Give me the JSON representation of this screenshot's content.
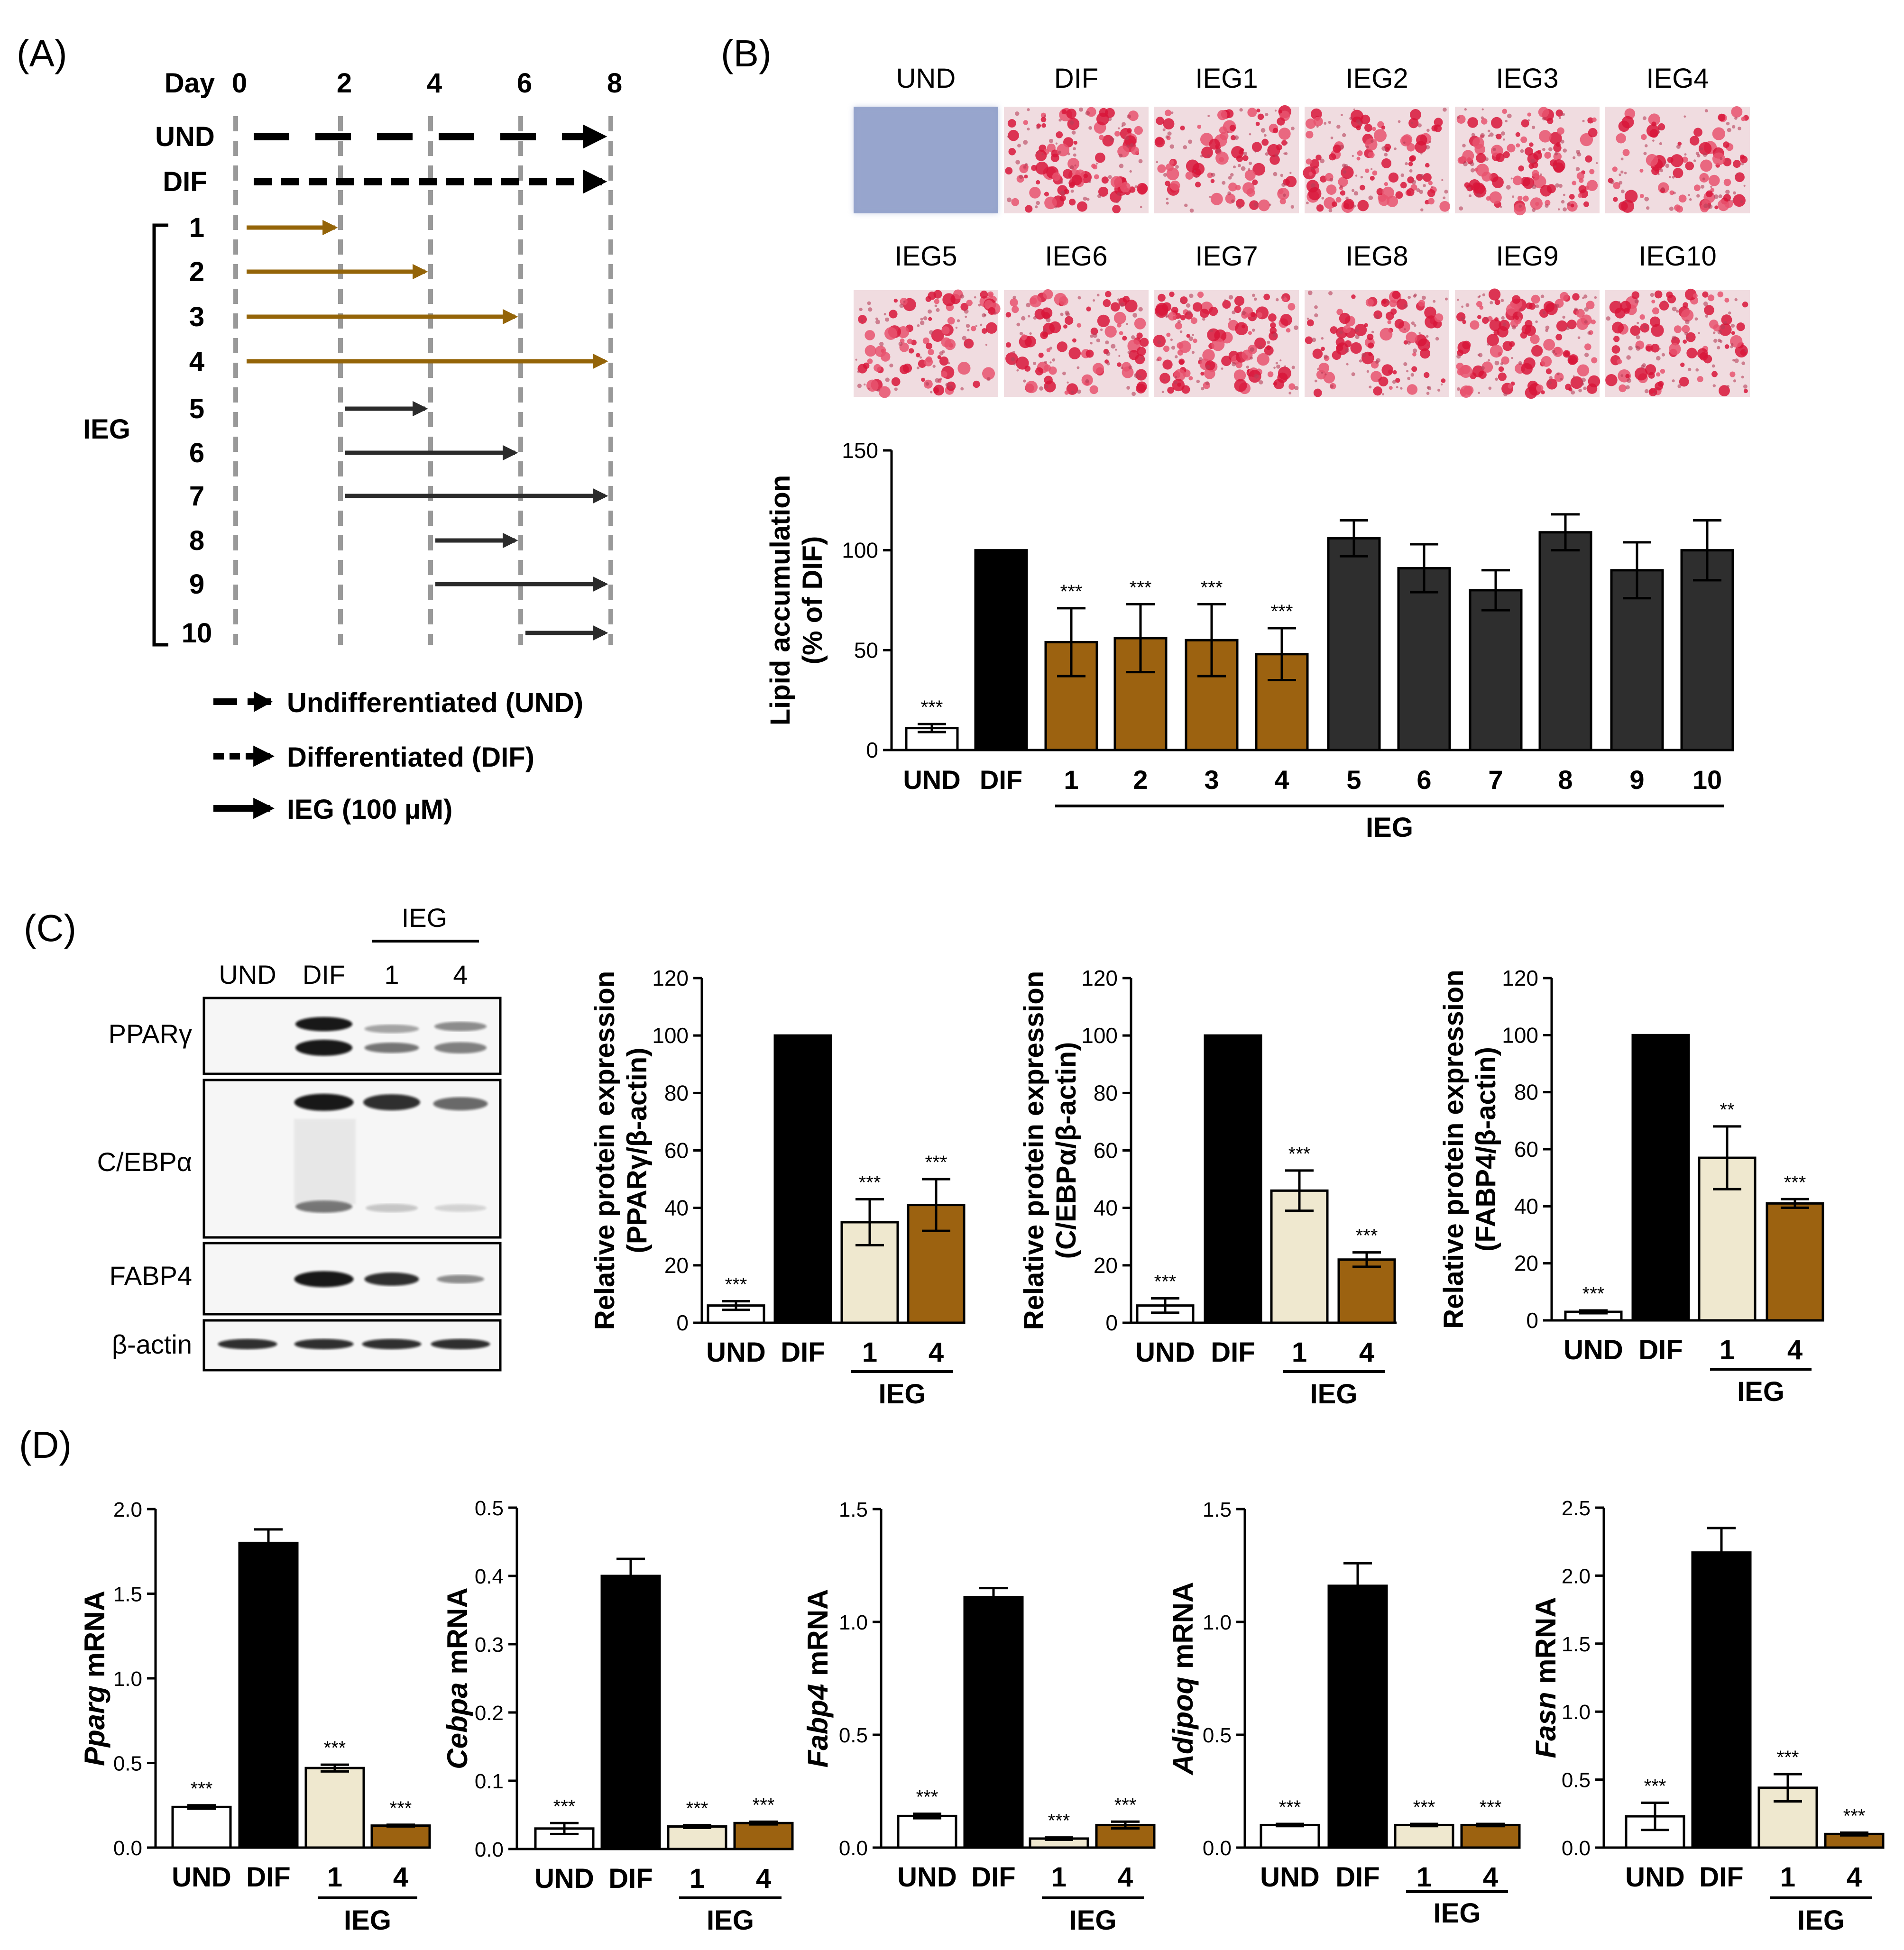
{
  "panel_labels": {
    "A": "(A)",
    "B": "(B)",
    "C": "(C)",
    "D": "(D)"
  },
  "colors": {
    "und": "#ffffff",
    "dif": "#000000",
    "ieg_early": "#9c6210",
    "ieg_late": "#2e2e2e",
    "ieg1_light": "#efe8cf",
    "grid_dash": "#999999",
    "arrow_brown": "#946408",
    "arrow_dark": "#2b2b2b"
  },
  "panelA": {
    "day_label": "Day",
    "days": [
      "0",
      "2",
      "4",
      "6",
      "8"
    ],
    "rows": [
      "UND",
      "DIF",
      "1",
      "2",
      "3",
      "4",
      "5",
      "6",
      "7",
      "8",
      "9",
      "10"
    ],
    "group_label": "IEG",
    "legend": [
      "Undifferentiated (UND)",
      "Differentiated (DIF)",
      "IEG (100 µM)"
    ]
  },
  "panelB": {
    "image_labels_row1": [
      "UND",
      "DIF",
      "IEG1",
      "IEG2",
      "IEG3",
      "IEG4"
    ],
    "image_labels_row2": [
      "IEG5",
      "IEG6",
      "IEG7",
      "IEG8",
      "IEG9",
      "IEG10"
    ],
    "group_label": "IEG"
  },
  "panelC": {
    "blot_lanes": [
      "UND",
      "DIF",
      "1",
      "4"
    ],
    "blot_group_label": "IEG",
    "blot_proteins": [
      "PPARγ",
      "C/EBPα",
      "FABP4",
      "β-actin"
    ],
    "group_label": "IEG"
  },
  "chart_data": [
    {
      "id": "B",
      "type": "bar",
      "title": "",
      "ylabel": "Lipid accumulation\n(% of DIF)",
      "ylim": [
        0,
        150
      ],
      "yticks": [
        0,
        50,
        100,
        150
      ],
      "categories": [
        "UND",
        "DIF",
        "1",
        "2",
        "3",
        "4",
        "5",
        "6",
        "7",
        "8",
        "9",
        "10"
      ],
      "values": [
        11,
        100,
        54,
        56,
        55,
        48,
        106,
        91,
        80,
        109,
        90,
        100
      ],
      "errors": [
        2,
        0,
        17,
        17,
        18,
        13,
        9,
        12,
        10,
        9,
        14,
        15
      ],
      "significance": [
        "***",
        "",
        "***",
        "***",
        "***",
        "***",
        "",
        "",
        "",
        "",
        "",
        ""
      ],
      "group": {
        "label": "IEG",
        "from": 2,
        "to": 11
      }
    },
    {
      "id": "C1",
      "type": "bar",
      "ylabel": "Relative protein expression\n(PPARγ/β-actin)",
      "ylim": [
        0,
        120
      ],
      "yticks": [
        0,
        20,
        40,
        60,
        80,
        100,
        120
      ],
      "categories": [
        "UND",
        "DIF",
        "1",
        "4"
      ],
      "values": [
        6,
        100,
        35,
        41
      ],
      "errors": [
        1.5,
        0,
        8,
        9
      ],
      "significance": [
        "***",
        "",
        "***",
        "***"
      ],
      "group": {
        "label": "IEG",
        "from": 2,
        "to": 3
      }
    },
    {
      "id": "C2",
      "type": "bar",
      "ylabel": "Relative protein expression\n(C/EBPα/β-actin)",
      "ylim": [
        0,
        120
      ],
      "yticks": [
        0,
        20,
        40,
        60,
        80,
        100,
        120
      ],
      "categories": [
        "UND",
        "DIF",
        "1",
        "4"
      ],
      "values": [
        6,
        100,
        46,
        22
      ],
      "errors": [
        2.5,
        0,
        7,
        2.5
      ],
      "significance": [
        "***",
        "",
        "***",
        "***"
      ],
      "group": {
        "label": "IEG",
        "from": 2,
        "to": 3
      }
    },
    {
      "id": "C3",
      "type": "bar",
      "ylabel": "Relative protein expression\n(FABP4/β-actin)",
      "ylim": [
        0,
        120
      ],
      "yticks": [
        0,
        20,
        40,
        60,
        80,
        100,
        120
      ],
      "categories": [
        "UND",
        "DIF",
        "1",
        "4"
      ],
      "values": [
        3,
        100,
        57,
        41
      ],
      "errors": [
        0.5,
        0,
        11,
        1.5
      ],
      "significance": [
        "***",
        "",
        "**",
        "***"
      ],
      "group": {
        "label": "IEG",
        "from": 2,
        "to": 3
      }
    },
    {
      "id": "D1",
      "type": "bar",
      "ylabel_italic": "Pparg",
      "ylabel_rest": " mRNA",
      "ylim": [
        0,
        2.0
      ],
      "yticks": [
        "0.0",
        "0.5",
        "1.0",
        "1.5",
        "2.0"
      ],
      "categories": [
        "UND",
        "DIF",
        "1",
        "4"
      ],
      "values": [
        0.24,
        1.8,
        0.47,
        0.13
      ],
      "errors": [
        0.01,
        0.08,
        0.02,
        0.005
      ],
      "significance": [
        "***",
        "",
        "***",
        "***"
      ],
      "group": {
        "label": "IEG",
        "from": 2,
        "to": 3
      }
    },
    {
      "id": "D2",
      "type": "bar",
      "ylabel_italic": "Cebpa",
      "ylabel_rest": " mRNA",
      "ylim": [
        0,
        0.5
      ],
      "yticks": [
        "0.0",
        "0.1",
        "0.2",
        "0.3",
        "0.4",
        "0.5"
      ],
      "categories": [
        "UND",
        "DIF",
        "1",
        "4"
      ],
      "values": [
        0.03,
        0.4,
        0.033,
        0.038
      ],
      "errors": [
        0.008,
        0.025,
        0.002,
        0.002
      ],
      "significance": [
        "***",
        "",
        "***",
        "***"
      ],
      "group": {
        "label": "IEG",
        "from": 2,
        "to": 3
      }
    },
    {
      "id": "D3",
      "type": "bar",
      "ylabel_italic": "Fabp4",
      "ylabel_rest": " mRNA",
      "ylim": [
        0,
        1.5
      ],
      "yticks": [
        "0.0",
        "0.5",
        "1.0",
        "1.5"
      ],
      "categories": [
        "UND",
        "DIF",
        "1",
        "4"
      ],
      "values": [
        0.14,
        1.11,
        0.04,
        0.1
      ],
      "errors": [
        0.01,
        0.04,
        0.005,
        0.015
      ],
      "significance": [
        "***",
        "",
        "***",
        "***"
      ],
      "group": {
        "label": "IEG",
        "from": 2,
        "to": 3
      }
    },
    {
      "id": "D4",
      "type": "bar",
      "ylabel_italic": "Adipoq",
      "ylabel_rest": " mRNA",
      "ylim": [
        0,
        1.5
      ],
      "yticks": [
        "0.0",
        "0.5",
        "1.0",
        "1.5"
      ],
      "categories": [
        "UND",
        "DIF",
        "1",
        "4"
      ],
      "values": [
        0.1,
        1.16,
        0.1,
        0.1
      ],
      "errors": [
        0.005,
        0.1,
        0.005,
        0.005
      ],
      "significance": [
        "***",
        "",
        "***",
        "***"
      ],
      "group": {
        "label": "IEG",
        "from": 2,
        "to": 3
      }
    },
    {
      "id": "D5",
      "type": "bar",
      "ylabel_italic": "Fasn",
      "ylabel_rest": " mRNA",
      "ylim": [
        0,
        2.5
      ],
      "yticks": [
        "0.0",
        "0.5",
        "1.0",
        "1.5",
        "2.0",
        "2.5"
      ],
      "categories": [
        "UND",
        "DIF",
        "1",
        "4"
      ],
      "values": [
        0.23,
        2.17,
        0.44,
        0.1
      ],
      "errors": [
        0.1,
        0.18,
        0.1,
        0.01
      ],
      "significance": [
        "***",
        "",
        "***",
        "***"
      ],
      "group": {
        "label": "IEG",
        "from": 2,
        "to": 3
      }
    }
  ]
}
